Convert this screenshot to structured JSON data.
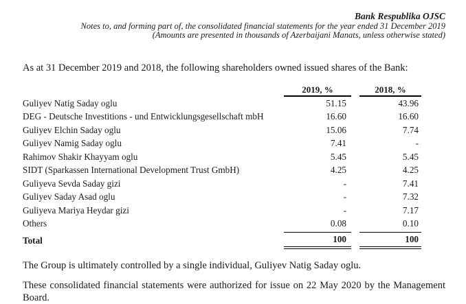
{
  "page_header": {
    "company": "Bank Respublika OJSC",
    "line1": "Notes to, and forming part of, the consolidated financial statements for the year ended 31 December 2019",
    "line2": "(Amounts are presented in thousands of Azerbaijani Manats, unless otherwise stated)"
  },
  "intro": "As at 31 December 2019 and 2018, the following shareholders owned issued shares of the Bank:",
  "table": {
    "columns": [
      "2019, %",
      "2018, %"
    ],
    "rows": [
      {
        "name": "Guliyev Natig Saday oglu",
        "y2019": "51.15",
        "y2018": "43.96"
      },
      {
        "name": "DEG - Deutsche Investitions - und Entwicklungsgesellschaft mbH",
        "y2019": "16.60",
        "y2018": "16.60"
      },
      {
        "name": "Guliyev Elchin Saday oglu",
        "y2019": "15.06",
        "y2018": "7.74"
      },
      {
        "name": "Guliyev Namig Saday oglu",
        "y2019": "7.41",
        "y2018": "-"
      },
      {
        "name": "Rahimov Shakir Khayyam oglu",
        "y2019": "5.45",
        "y2018": "5.45"
      },
      {
        "name": "SIDT (Sparkassen International Development Trust GmbH)",
        "y2019": "4.25",
        "y2018": "4.25"
      },
      {
        "name": "Guliyeva Sevda Saday gizi",
        "y2019": "-",
        "y2018": "7.41"
      },
      {
        "name": "Guliyev Saday Asad oglu",
        "y2019": "-",
        "y2018": "7.32"
      },
      {
        "name": "Guliyeva Mariya Heydar gizi",
        "y2019": "-",
        "y2018": "7.17"
      },
      {
        "name": "Others",
        "y2019": "0.08",
        "y2018": "0.10"
      }
    ],
    "total": {
      "name": "Total",
      "y2019": "100",
      "y2018": "100"
    }
  },
  "notes": {
    "control": "The Group is ultimately controlled by a single individual, Guliyev Natig Saday oglu.",
    "authorization": "These consolidated financial statements were authorized for issue on 22 May 2020 by the Management Board."
  },
  "colors": {
    "text": "#1b1b1b",
    "rule": "#000000",
    "background": "#ffffff"
  }
}
